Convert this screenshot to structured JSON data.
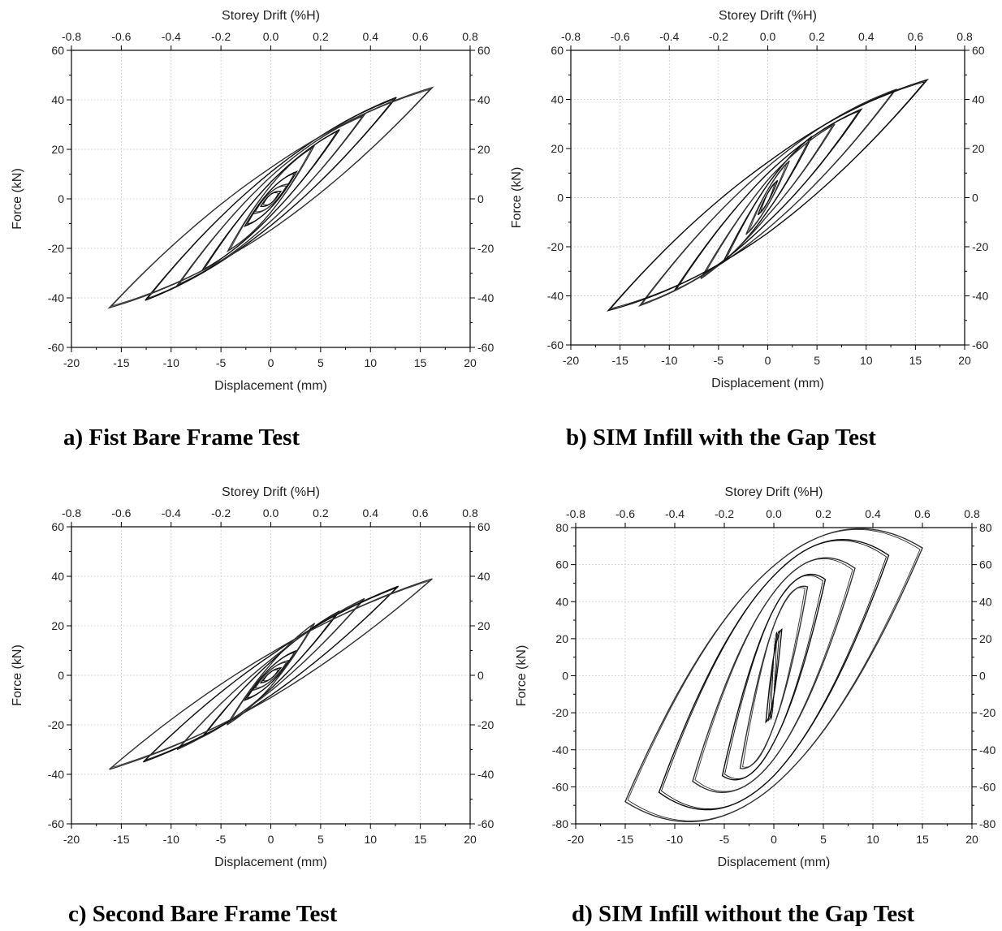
{
  "chart_data": [
    {
      "type": "line",
      "caption": "a) Fist Bare Frame Test",
      "xlabel": "Displacement (mm)",
      "ylabel": "Force (kN)",
      "x2label": "Storey Drift (%H)",
      "xlim": [
        -20,
        20
      ],
      "ylim": [
        -60,
        60
      ],
      "x2lim": [
        -0.8,
        0.8
      ],
      "xticks": [
        -20,
        -15,
        -10,
        -5,
        0,
        5,
        10,
        15,
        20
      ],
      "yticks": [
        -60,
        -40,
        -20,
        0,
        20,
        40,
        60
      ],
      "x2ticks": [
        "-0.8",
        "-0.6",
        "-0.4",
        "-0.2",
        "0.0",
        "0.2",
        "0.4",
        "0.6",
        "0.8"
      ],
      "grid": true,
      "series": [
        {
          "cycles": [
            {
              "xmax": 1.0,
              "fmax": 3,
              "fmin": -3,
              "width": 2.0,
              "repeat": 2
            },
            {
              "xmax": 1.8,
              "fmax": 6,
              "fmin": -6,
              "width": 3.0,
              "repeat": 2
            },
            {
              "xmax": 2.6,
              "fmax": 11,
              "fmin": -11,
              "width": 4.0,
              "repeat": 2
            },
            {
              "xmax": 4.3,
              "fmax": 21,
              "fmin": -21,
              "width": 6.0,
              "repeat": 2
            },
            {
              "xmax": 6.9,
              "fmax": 28,
              "fmin": -29,
              "width": 7.5,
              "repeat": 2
            },
            {
              "xmax": 9.4,
              "fmax": 34,
              "fmin": -35,
              "width": 10.0,
              "repeat": 2
            },
            {
              "xmax": 12.6,
              "fmax": 41,
              "fmin": -41,
              "width": 12.0,
              "repeat": 2
            },
            {
              "xmax": 16.2,
              "fmax": 45,
              "fmin": -44,
              "width": 14.0,
              "repeat": 2
            }
          ]
        }
      ]
    },
    {
      "type": "line",
      "caption": "b) SIM Infill with the Gap Test",
      "xlabel": "Displacement (mm)",
      "ylabel": "Force (kN)",
      "x2label": "Storey Drift (%H)",
      "xlim": [
        -20,
        20
      ],
      "ylim": [
        -60,
        60
      ],
      "x2lim": [
        -0.8,
        0.8
      ],
      "xticks": [
        -20,
        -15,
        -10,
        -5,
        0,
        5,
        10,
        15,
        20
      ],
      "yticks": [
        -60,
        -40,
        -20,
        0,
        20,
        40,
        60
      ],
      "x2ticks": [
        "-0.8",
        "-0.6",
        "-0.4",
        "-0.2",
        "0.0",
        "0.2",
        "0.4",
        "0.6",
        "0.8"
      ],
      "grid": true,
      "series": [
        {
          "cycles": [
            {
              "xmax": 1.0,
              "fmax": 7,
              "fmin": -7,
              "width": 2.0,
              "repeat": 2
            },
            {
              "xmax": 2.2,
              "fmax": 15,
              "fmin": -15,
              "width": 3.5,
              "repeat": 2
            },
            {
              "xmax": 4.5,
              "fmax": 25,
              "fmin": -26,
              "width": 6.0,
              "repeat": 2
            },
            {
              "xmax": 6.8,
              "fmax": 30,
              "fmin": -33,
              "width": 8.0,
              "repeat": 2
            },
            {
              "xmax": 9.5,
              "fmax": 36,
              "fmin": -38,
              "width": 11.0,
              "repeat": 2
            },
            {
              "xmax": 13.0,
              "fmax": 44,
              "fmin": -44,
              "width": 14.0,
              "repeat": 2
            },
            {
              "xmax": 16.2,
              "fmax": 48,
              "fmin": -46,
              "width": 16.0,
              "repeat": 2
            }
          ]
        }
      ]
    },
    {
      "type": "line",
      "caption": "c) Second Bare Frame Test",
      "xlabel": "Displacement (mm)",
      "ylabel": "Force (kN)",
      "x2label": "Storey Drift (%H)",
      "xlim": [
        -20,
        20
      ],
      "ylim": [
        -60,
        60
      ],
      "x2lim": [
        -0.8,
        0.8
      ],
      "xticks": [
        -20,
        -15,
        -10,
        -5,
        0,
        5,
        10,
        15,
        20
      ],
      "yticks": [
        -60,
        -40,
        -20,
        0,
        20,
        40,
        60
      ],
      "x2ticks": [
        "-0.8",
        "-0.6",
        "-0.4",
        "-0.2",
        "0.0",
        "0.2",
        "0.4",
        "0.6",
        "0.8"
      ],
      "grid": true,
      "series": [
        {
          "cycles": [
            {
              "xmax": 1.0,
              "fmax": 3,
              "fmin": -3,
              "width": 1.5,
              "repeat": 2
            },
            {
              "xmax": 1.8,
              "fmax": 6,
              "fmin": -6,
              "width": 2.5,
              "repeat": 2
            },
            {
              "xmax": 2.6,
              "fmax": 10,
              "fmin": -10,
              "width": 3.5,
              "repeat": 2
            },
            {
              "xmax": 4.4,
              "fmax": 21,
              "fmin": -20,
              "width": 5.0,
              "repeat": 2
            },
            {
              "xmax": 6.9,
              "fmax": 26,
              "fmin": -25,
              "width": 6.0,
              "repeat": 2
            },
            {
              "xmax": 9.4,
              "fmax": 31,
              "fmin": -30,
              "width": 7.0,
              "repeat": 2
            },
            {
              "xmax": 12.8,
              "fmax": 36,
              "fmin": -35,
              "width": 9.0,
              "repeat": 2
            },
            {
              "xmax": 16.2,
              "fmax": 39,
              "fmin": -38,
              "width": 10.0,
              "repeat": 2
            }
          ]
        }
      ]
    },
    {
      "type": "line",
      "caption": "d) SIM Infill without the Gap Test",
      "xlabel": "Displacement (mm)",
      "ylabel": "Force (kN)",
      "x2label": "Storey Drift (%H)",
      "xlim": [
        -20,
        20
      ],
      "ylim": [
        -80,
        80
      ],
      "x2lim": [
        -0.8,
        0.8
      ],
      "xticks": [
        -20,
        -15,
        -10,
        -5,
        0,
        5,
        10,
        15,
        20
      ],
      "yticks": [
        -80,
        -60,
        -40,
        -20,
        0,
        20,
        40,
        60,
        80
      ],
      "x2ticks": [
        "-0.8",
        "-0.6",
        "-0.4",
        "-0.2",
        "0.0",
        "0.2",
        "0.4",
        "0.6",
        "0.8"
      ],
      "grid": true,
      "series": [
        {
          "cycles": [
            {
              "xmax": 0.8,
              "fmax": 25,
              "fmin": -25,
              "width": 12.0,
              "repeat": 3
            },
            {
              "xmax": 3.4,
              "fmax": 48,
              "fmin": -50,
              "width": 30.0,
              "repeat": 2
            },
            {
              "xmax": 5.2,
              "fmax": 52,
              "fmin": -54,
              "width": 40.0,
              "repeat": 2
            },
            {
              "xmax": 8.2,
              "fmax": 58,
              "fmin": -57,
              "width": 50.0,
              "repeat": 2
            },
            {
              "xmax": 11.6,
              "fmax": 65,
              "fmin": -63,
              "width": 60.0,
              "repeat": 2
            },
            {
              "xmax": 15.0,
              "fmax": 69,
              "fmin": -68,
              "width": 66.0,
              "repeat": 2
            }
          ]
        }
      ]
    }
  ]
}
